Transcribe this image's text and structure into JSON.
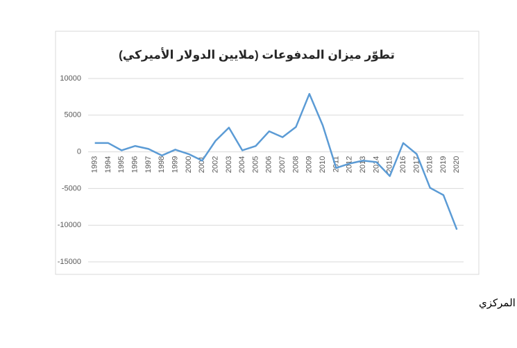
{
  "chart_data": {
    "type": "line",
    "title": "تطوّر ميزان المدفوعات (ملايين الدولار الأميركي)",
    "categories": [
      "1993",
      "1994",
      "1995",
      "1996",
      "1997",
      "1998",
      "1999",
      "2000",
      "2001",
      "2002",
      "2003",
      "2004",
      "2005",
      "2006",
      "2007",
      "2008",
      "2009",
      "2010",
      "2011",
      "2012",
      "2013",
      "2014",
      "2015",
      "2016",
      "2017",
      "2018",
      "2019",
      "2020"
    ],
    "series": [
      {
        "color": "#5b9bd5",
        "values": [
          1200,
          1200,
          200,
          800,
          400,
          -500,
          300,
          -300,
          -1200,
          1500,
          3300,
          200,
          800,
          2800,
          2000,
          3400,
          7900,
          3600,
          -2200,
          -1600,
          -1200,
          -1400,
          -3300,
          1200,
          -300,
          -4900,
          -5900,
          -10600
        ]
      }
    ],
    "ylim": [
      -15000,
      10000
    ],
    "yticks": [
      -15000,
      -10000,
      -5000,
      0,
      5000,
      10000
    ],
    "grid": true
  },
  "source": "المصدر: أرقام المصرف المركزي"
}
